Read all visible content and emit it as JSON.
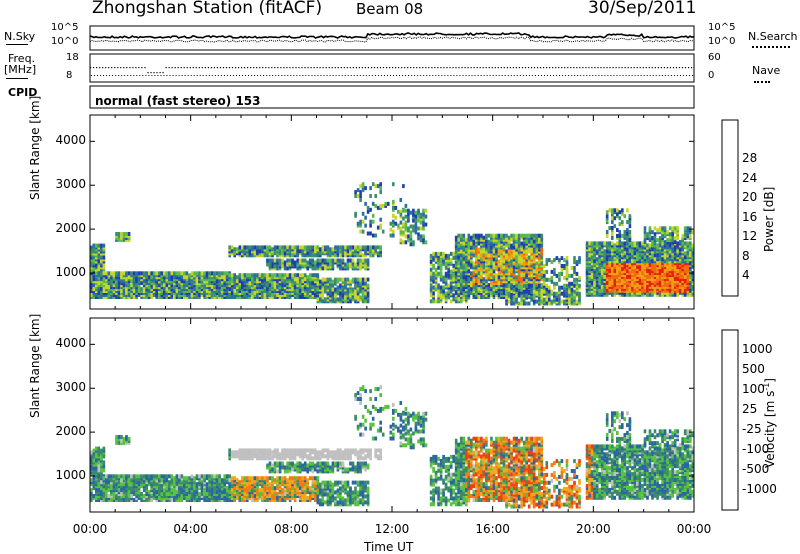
{
  "header": {
    "station": "Zhongshan Station (fitACF)",
    "beam": "Beam 08",
    "date": "30/Sep/2011"
  },
  "top_panels": {
    "nsky_label": "N.Sky",
    "nsearch_label": "N.Search",
    "left_ticks_nsky": [
      "10^5",
      "10^0"
    ],
    "right_ticks_nsearch": [
      "10^5",
      "10^0"
    ],
    "freq_label": "Freq.",
    "freq_unit": "[MHz]",
    "freq_ticks": [
      "18",
      "8"
    ],
    "nave_label": "Nave",
    "nave_ticks": [
      "60",
      "0"
    ],
    "cpid_label": "CPID",
    "cpid_text": "normal (fast stereo) 153"
  },
  "colors": {
    "power": [
      "#0a14e6",
      "#1f3fb0",
      "#2c6e9e",
      "#3c8f6c",
      "#5cba4c",
      "#c8d62a",
      "#f0a010",
      "#f06a10",
      "#e62010"
    ],
    "velocity": [
      "#1020d0",
      "#2a66a0",
      "#3a8a6a",
      "#56c33c",
      "#c0c0c0",
      "#f2a81c",
      "#f27a10",
      "#f04010",
      "#e61010"
    ]
  },
  "chart_data": [
    {
      "type": "heatmap",
      "name": "power",
      "ylabel": "Slant Range [km]",
      "yticks": [
        1000,
        2000,
        3000,
        4000
      ],
      "ylim": [
        180,
        4600
      ],
      "xlim": [
        0,
        24
      ],
      "colorbar_label": "Power [dB]",
      "colorbar_ticks": [
        "4",
        "8",
        "12",
        "16",
        "20",
        "24",
        "28"
      ],
      "colorbar_range": [
        0,
        30
      ]
    },
    {
      "type": "heatmap",
      "name": "velocity",
      "xlabel": "Time UT",
      "ylabel": "Slant Range [km]",
      "xticks": [
        "00:00",
        "04:00",
        "08:00",
        "12:00",
        "16:00",
        "20:00",
        "00:00"
      ],
      "yticks": [
        1000,
        2000,
        3000,
        4000
      ],
      "ylim": [
        180,
        4600
      ],
      "xlim": [
        0,
        24
      ],
      "colorbar_label": "Velocity [m s",
      "colorbar_unit_sup": "-1",
      "colorbar_unit_close": "]",
      "colorbar_ticks": [
        "1000",
        "500",
        "100",
        "25",
        "-25",
        "-100",
        "-500",
        "-1000"
      ]
    }
  ]
}
